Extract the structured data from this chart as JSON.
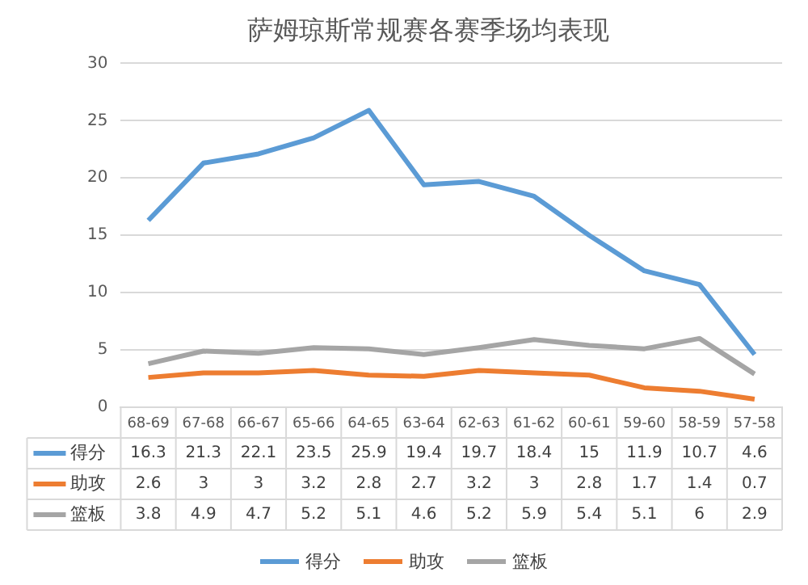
{
  "chart_data": {
    "type": "line",
    "title": "萨姆琼斯常规赛各赛季场均表现",
    "categories": [
      "68-69",
      "67-68",
      "66-67",
      "65-66",
      "64-65",
      "63-64",
      "62-63",
      "61-62",
      "60-61",
      "59-60",
      "58-59",
      "57-58"
    ],
    "series": [
      {
        "name": "得分",
        "color": "#5b9bd5",
        "values": [
          16.3,
          21.3,
          22.1,
          23.5,
          25.9,
          19.4,
          19.7,
          18.4,
          15,
          11.9,
          10.7,
          4.6
        ]
      },
      {
        "name": "助攻",
        "color": "#ed7d31",
        "values": [
          2.6,
          3,
          3,
          3.2,
          2.8,
          2.7,
          3.2,
          3,
          2.8,
          1.7,
          1.4,
          0.7
        ]
      },
      {
        "name": "篮板",
        "color": "#a5a5a5",
        "values": [
          3.8,
          4.9,
          4.7,
          5.2,
          5.1,
          4.6,
          5.2,
          5.9,
          5.4,
          5.1,
          6,
          2.9
        ]
      }
    ],
    "ylim": [
      0,
      30
    ],
    "yticks": [
      0,
      5,
      10,
      15,
      20,
      25,
      30
    ],
    "grid": "y",
    "legend": "bottom",
    "marker": "none",
    "data_labels": true
  }
}
